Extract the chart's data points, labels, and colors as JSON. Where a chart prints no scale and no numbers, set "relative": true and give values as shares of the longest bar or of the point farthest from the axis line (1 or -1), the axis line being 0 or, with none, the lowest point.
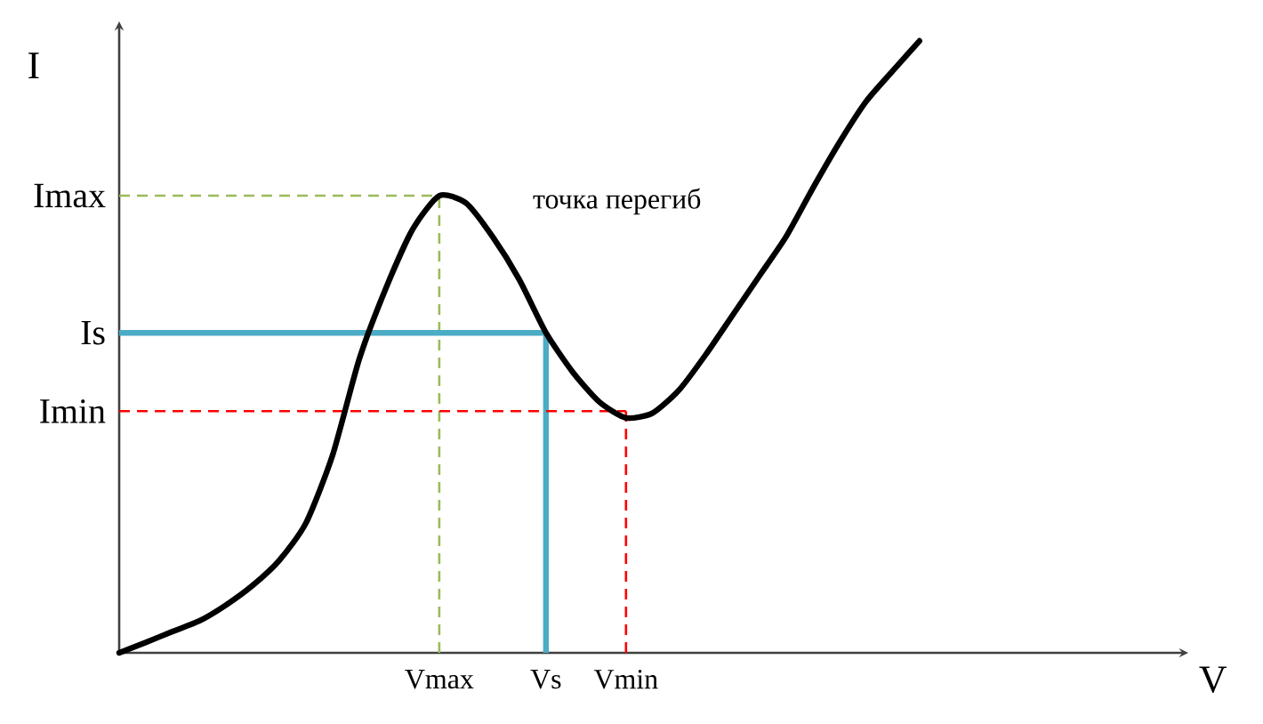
{
  "chart_data": {
    "type": "line",
    "relative": true,
    "ylabel": "I",
    "annotations": [
      "точка перегиб",
      "V"
    ],
    "categories": [
      null,
      null,
      null,
      null,
      null,
      null,
      null,
      null,
      null,
      null,
      null,
      null,
      "Vmax",
      null,
      null,
      null,
      "Vs",
      null,
      null,
      "Vmin",
      null,
      null,
      null,
      null,
      null,
      null,
      null,
      null,
      null,
      null,
      null
    ],
    "series": [
      {
        "color": "#000000",
        "line_style": "solid",
        "values": [
          0,
          0.017,
          0.035,
          0.052,
          0.078,
          0.11,
          0.151,
          0.212,
          0.323,
          0.48,
          0.596,
          0.692,
          0.747,
          0.735,
          0.68,
          0.61,
          0.523,
          0.459,
          0.41,
          0.384,
          0.392,
          0.43,
          0.488,
          0.552,
          0.616,
          0.68,
          0.759,
          0.834,
          0.901,
          0.951,
          1
        ]
      }
    ],
    "ref_lines": [
      {
        "axis": "y",
        "value": 0.747,
        "label": "Imax",
        "color": "#9bbb59",
        "line_style": "dashed"
      },
      {
        "axis": "x",
        "value": "Vmax",
        "color": "#9bbb59",
        "line_style": "dashed"
      },
      {
        "axis": "y",
        "value": 0.523,
        "label": "Is",
        "color": "#4bacc6",
        "line_style": "solid"
      },
      {
        "axis": "x",
        "value": "Vs",
        "color": "#4bacc6",
        "line_style": "solid"
      },
      {
        "axis": "y",
        "value": 0.395,
        "label": "Imin",
        "color": "#ff0000",
        "line_style": "dashed"
      },
      {
        "axis": "x",
        "value": "Vmin",
        "color": "#ff0000",
        "line_style": "dashed"
      }
    ],
    "marker": "none"
  }
}
